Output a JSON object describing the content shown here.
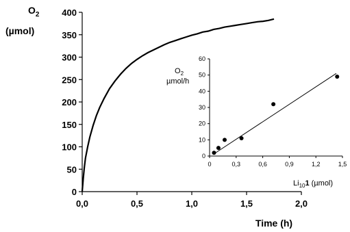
{
  "chart_data": [
    {
      "type": "line",
      "ylabel_main": "O",
      "ylabel_sub": "2",
      "ylabel_unit": "(µmol)",
      "xlabel": "Time (h)",
      "xlim": [
        0,
        2.0
      ],
      "ylim": [
        0,
        400
      ],
      "x_ticks": [
        "0,0",
        "0,5",
        "1,0",
        "1,5",
        "2,0"
      ],
      "y_ticks": [
        "0",
        "50",
        "100",
        "150",
        "200",
        "250",
        "300",
        "350",
        "400"
      ],
      "series": [
        {
          "x": [
            0,
            0.01,
            0.02,
            0.03,
            0.05,
            0.07,
            0.1,
            0.13,
            0.16,
            0.2,
            0.25,
            0.3,
            0.35,
            0.4,
            0.45,
            0.5,
            0.55,
            0.6,
            0.65,
            0.7,
            0.75,
            0.8,
            0.85,
            0.9,
            0.95,
            1.0,
            1.05,
            1.1,
            1.15,
            1.2,
            1.25,
            1.3,
            1.35,
            1.4,
            1.45,
            1.5,
            1.55,
            1.6,
            1.65,
            1.7,
            1.75
          ],
          "values": [
            0,
            30,
            55,
            75,
            100,
            122,
            148,
            170,
            188,
            208,
            230,
            247,
            262,
            275,
            286,
            295,
            303,
            310,
            316,
            322,
            328,
            333,
            337,
            341,
            345,
            349,
            352,
            356,
            358,
            362,
            364,
            367,
            369,
            371,
            373,
            375,
            377,
            379,
            380,
            382,
            385
          ]
        }
      ]
    },
    {
      "type": "scatter",
      "ylabel_main": "O",
      "ylabel_sub": "2",
      "ylabel_unit": "µmol/h",
      "xlabel_pre": "Li",
      "xlabel_sub": "10",
      "xlabel_bold": "1",
      "xlabel_unit": " (µmol)",
      "xlim": [
        0,
        1.5
      ],
      "ylim": [
        0,
        60
      ],
      "x_ticks": [
        "0",
        "0,3",
        "0,6",
        "0,9",
        "1,2",
        "1,5"
      ],
      "y_ticks": [
        "0",
        "10",
        "20",
        "30",
        "40",
        "50",
        "60"
      ],
      "points": [
        {
          "x": 0.05,
          "y": 2
        },
        {
          "x": 0.1,
          "y": 5
        },
        {
          "x": 0.17,
          "y": 10
        },
        {
          "x": 0.36,
          "y": 11
        },
        {
          "x": 0.72,
          "y": 32
        },
        {
          "x": 1.44,
          "y": 49
        }
      ],
      "fit_line": {
        "x": [
          0.04,
          1.43
        ],
        "y": [
          1,
          51
        ]
      }
    }
  ]
}
